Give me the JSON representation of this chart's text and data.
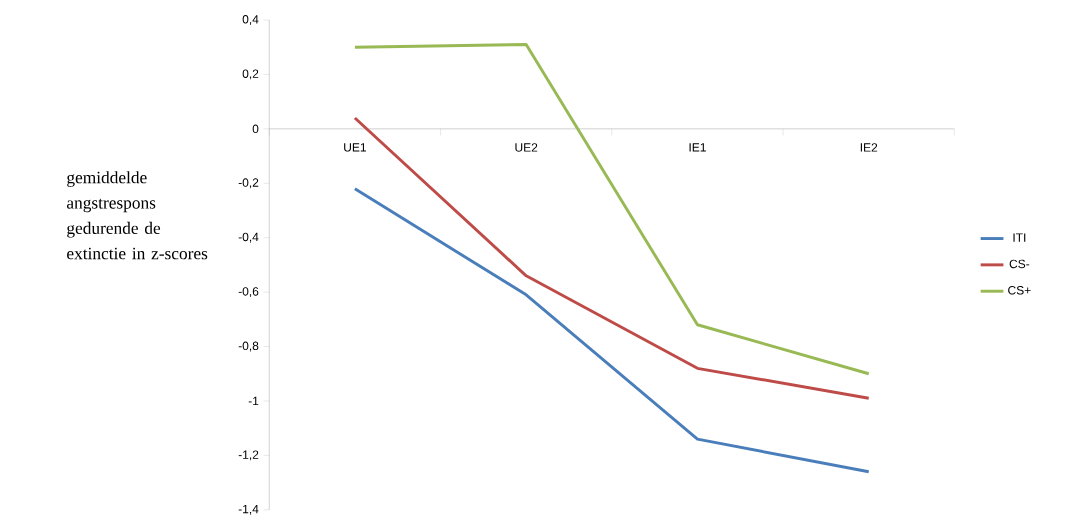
{
  "chart_data": {
    "type": "line",
    "ylabel": "gemiddelde angstrespons gedurende de extinctie in z-scores",
    "categories": [
      "UE1",
      "UE2",
      "IE1",
      "IE2"
    ],
    "series": [
      {
        "name": "ITI",
        "color": "#4a7ebb",
        "values": [
          -0.22,
          -0.61,
          -1.14,
          -1.26
        ]
      },
      {
        "name": "CS-",
        "color": "#be4b48",
        "values": [
          0.04,
          -0.54,
          -0.88,
          -0.99
        ]
      },
      {
        "name": "CS+",
        "color": "#98b954",
        "values": [
          0.3,
          0.31,
          -0.72,
          -0.9
        ]
      }
    ],
    "ylim": [
      -1.4,
      0.4
    ],
    "yticks": [
      {
        "value": -1.4,
        "label": "-1,4"
      },
      {
        "value": -1.2,
        "label": "-1,2"
      },
      -1,
      {
        "value": -0.8,
        "label": "-0,8"
      },
      {
        "value": -0.6,
        "label": "-0,6"
      },
      {
        "value": -0.4,
        "label": "-0,4"
      },
      {
        "value": -0.2,
        "label": "-0,2"
      },
      0,
      {
        "value": 0.2,
        "label": "0,2"
      },
      {
        "value": 0.4,
        "label": "0,4"
      }
    ],
    "grid": false,
    "legend": "right",
    "marker": "none",
    "line_style": "solid"
  }
}
